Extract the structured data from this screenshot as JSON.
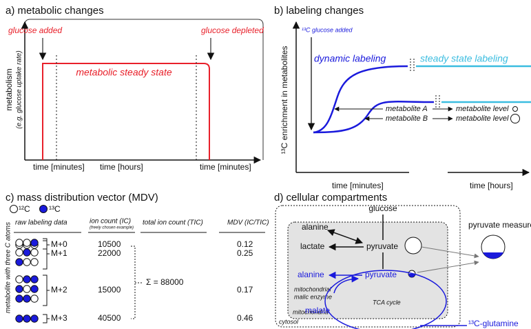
{
  "panel_a": {
    "title": "a) metabolic changes",
    "y_label": "metabolism",
    "y_note": "(e.g. glucose uptake rate)",
    "glucose_added": "glucose added",
    "glucose_depleted": "glucose depleted",
    "state": "metabolic steady state",
    "x_labels": [
      "time [minutes]",
      "time [hours]",
      "time [minutes]"
    ]
  },
  "panel_b": {
    "title": "b) labeling changes",
    "y_label": "¹³C enrichment in metabolites",
    "glucose_added": "¹³C glucose added",
    "dynamic": "dynamic labeling",
    "steady": "steady state labeling",
    "metabolites": [
      {
        "name": "metabolite A",
        "level": "metabolite level"
      },
      {
        "name": "metabolite B",
        "level": "metabolite level"
      }
    ],
    "x_labels": [
      "time [minutes]",
      "time [hours]"
    ]
  },
  "panel_c": {
    "title": "c) mass distribution vector (MDV)",
    "legend": [
      "¹²C",
      "¹³C"
    ],
    "columns": [
      "raw labeling data",
      "ion count (IC)",
      "total ion count (TIC)",
      "MDV (IC/TIC)"
    ],
    "column_note": "(freely chosen example)",
    "side_label": "metabolite with three C atoms",
    "rows": [
      {
        "isotopologue": "M+0",
        "ion_count": 10500,
        "mdv": 0.12
      },
      {
        "isotopologue": "M+1",
        "ion_count": 22000,
        "mdv": 0.25
      },
      {
        "isotopologue": "M+2",
        "ion_count": 15000,
        "mdv": 0.17
      },
      {
        "isotopologue": "M+3",
        "ion_count": 40500,
        "mdv": 0.46
      }
    ],
    "total": "Σ = 88000"
  },
  "panel_d": {
    "title": "d) cellular compartments",
    "glucose": "glucose",
    "alanine": "alanine",
    "lactate": "lactate",
    "pyruvate": "pyruvate",
    "pyruvate_measure": "pyruvate measure",
    "mito_alanine": "alanine",
    "mito_pyruvate": "pyruvate",
    "enzyme": [
      "mitochondrial",
      "malic enzyme"
    ],
    "cycle": "TCA cycle",
    "malate": "malate",
    "glutamine": "¹³C-glutamine",
    "mitochondria": "mitochondria",
    "cytosol": "cytosol"
  }
}
